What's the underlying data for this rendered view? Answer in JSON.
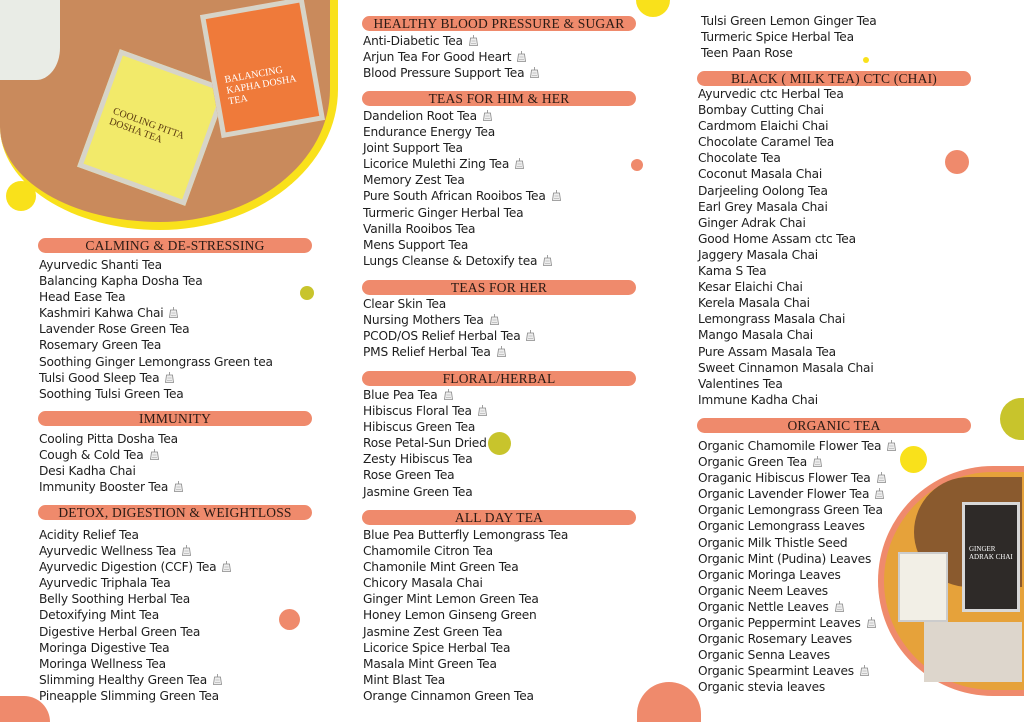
{
  "colors": {
    "header": "#ef8a6c",
    "yellow": "#f9e11b",
    "olive": "#c8c42c",
    "orange": "#ef8a6c"
  },
  "icons": {
    "teabag": "teabag-icon"
  },
  "photos": {
    "top_left": {
      "tin1_label": "COOLING PITTA DOSHA TEA",
      "tin2_label": "BALANCING KAPHA DOSHA TEA"
    },
    "bottom_right": {
      "jar_label": "GINGER ADRAK CHAI"
    }
  },
  "sections": [
    {
      "id": "calming",
      "title": "CALMING & DE-STRESSING",
      "items": [
        {
          "name": "Ayurvedic Shanti Tea"
        },
        {
          "name": "Balancing Kapha Dosha Tea"
        },
        {
          "name": "Head Ease Tea"
        },
        {
          "name": "Kashmiri Kahwa Chai",
          "teabag": true
        },
        {
          "name": "Lavender Rose Green Tea"
        },
        {
          "name": "Rosemary Green Tea"
        },
        {
          "name": "Soothing Ginger Lemongrass Green tea"
        },
        {
          "name": "Tulsi Good Sleep Tea",
          "teabag": true
        },
        {
          "name": "Soothing Tulsi Green Tea"
        }
      ]
    },
    {
      "id": "immunity",
      "title": "IMMUNITY",
      "items": [
        {
          "name": "Cooling Pitta Dosha Tea"
        },
        {
          "name": "Cough & Cold Tea",
          "teabag": true
        },
        {
          "name": "Desi Kadha Chai"
        },
        {
          "name": "Immunity Booster Tea",
          "teabag": true
        }
      ]
    },
    {
      "id": "detox",
      "title": "DETOX, DIGESTION & WEIGHTLOSS",
      "items": [
        {
          "name": "Acidity Relief Tea"
        },
        {
          "name": "Ayurvedic Wellness Tea",
          "teabag": true
        },
        {
          "name": "Ayurvedic Digestion (CCF) Tea",
          "teabag": true
        },
        {
          "name": "Ayurvedic Triphala Tea"
        },
        {
          "name": "Belly Soothing Herbal Tea"
        },
        {
          "name": "Detoxifying Mint Tea"
        },
        {
          "name": "Digestive Herbal Green Tea"
        },
        {
          "name": "Moringa Digestive Tea"
        },
        {
          "name": "Moringa Wellness Tea"
        },
        {
          "name": "Slimming Healthy Green Tea",
          "teabag": true
        },
        {
          "name": "Pineapple Slimming Green Tea"
        }
      ]
    },
    {
      "id": "blood-pressure",
      "title": "HEALTHY BLOOD PRESSURE & SUGAR",
      "items": [
        {
          "name": "Anti-Diabetic Tea",
          "teabag": true
        },
        {
          "name": "Arjun Tea For Good Heart",
          "teabag": true
        },
        {
          "name": "Blood Pressure Support Tea",
          "teabag": true
        }
      ]
    },
    {
      "id": "him-her",
      "title": "TEAS FOR HIM & HER",
      "items": [
        {
          "name": "Dandelion Root Tea",
          "teabag": true
        },
        {
          "name": "Endurance Energy Tea"
        },
        {
          "name": "Joint Support Tea"
        },
        {
          "name": "Licorice Mulethi Zing Tea",
          "teabag": true
        },
        {
          "name": "Memory Zest Tea"
        },
        {
          "name": "Pure South African Rooibos Tea",
          "teabag": true
        },
        {
          "name": "Turmeric Ginger Herbal Tea"
        },
        {
          "name": "Vanilla Rooibos Tea"
        },
        {
          "name": "Mens Support Tea"
        },
        {
          "name": "Lungs Cleanse & Detoxify tea",
          "teabag": true
        }
      ]
    },
    {
      "id": "her",
      "title": "TEAS FOR HER",
      "items": [
        {
          "name": "Clear Skin Tea"
        },
        {
          "name": "Nursing Mothers Tea",
          "teabag": true
        },
        {
          "name": "PCOD/OS Relief Herbal Tea",
          "teabag": true
        },
        {
          "name": "PMS Relief Herbal Tea",
          "teabag": true
        }
      ]
    },
    {
      "id": "floral",
      "title": "FLORAL/HERBAL",
      "items": [
        {
          "name": "Blue Pea Tea",
          "teabag": true
        },
        {
          "name": "Hibiscus Floral Tea",
          "teabag": true
        },
        {
          "name": "Hibiscus Green Tea"
        },
        {
          "name": "Rose Petal-Sun Dried"
        },
        {
          "name": "Zesty Hibiscus Tea"
        },
        {
          "name": "Rose Green Tea"
        },
        {
          "name": "Jasmine Green Tea"
        }
      ]
    },
    {
      "id": "all-day",
      "title": "ALL DAY TEA",
      "items": [
        {
          "name": "Blue Pea Butterfly Lemongrass Tea"
        },
        {
          "name": "Chamomile Citron Tea"
        },
        {
          "name": "Chamonile Mint Green Tea"
        },
        {
          "name": "Chicory Masala Chai"
        },
        {
          "name": "Ginger Mint Lemon Green Tea"
        },
        {
          "name": "Honey Lemon Ginseng Green"
        },
        {
          "name": "Jasmine Zest Green Tea"
        },
        {
          "name": "Licorice Spice Herbal Tea"
        },
        {
          "name": "Masala Mint Green Tea"
        },
        {
          "name": "Mint Blast Tea"
        },
        {
          "name": "Orange Cinnamon Green Tea"
        }
      ]
    },
    {
      "id": "all-day-cont",
      "title": "",
      "items": [
        {
          "name": "Tulsi Green Lemon Ginger Tea"
        },
        {
          "name": "Turmeric Spice Herbal Tea"
        },
        {
          "name": "Teen Paan Rose"
        }
      ]
    },
    {
      "id": "black",
      "title": "BLACK ( MILK TEA) CTC (CHAI)",
      "items": [
        {
          "name": "Ayurvedic ctc Herbal Tea"
        },
        {
          "name": "Bombay Cutting Chai"
        },
        {
          "name": "Cardmom Elaichi Chai"
        },
        {
          "name": "Chocolate Caramel Tea"
        },
        {
          "name": "Chocolate Tea"
        },
        {
          "name": "Coconut Masala Chai"
        },
        {
          "name": "Darjeeling Oolong Tea"
        },
        {
          "name": "Earl Grey Masala Chai"
        },
        {
          "name": "Ginger Adrak Chai"
        },
        {
          "name": "Good Home Assam ctc Tea"
        },
        {
          "name": "Jaggery Masala Chai"
        },
        {
          "name": "Kama S Tea"
        },
        {
          "name": "Kesar Elaichi Chai"
        },
        {
          "name": "Kerela Masala Chai"
        },
        {
          "name": "Lemongrass Masala Chai"
        },
        {
          "name": "Mango Masala Chai"
        },
        {
          "name": "Pure Assam Masala Tea"
        },
        {
          "name": "Sweet Cinnamon Masala Chai"
        },
        {
          "name": "Valentines Tea"
        },
        {
          "name": "Immune Kadha Chai"
        }
      ]
    },
    {
      "id": "organic",
      "title": "ORGANIC TEA",
      "items": [
        {
          "name": "Organic Chamomile Flower Tea",
          "teabag": true
        },
        {
          "name": "Organic Green Tea",
          "teabag": true
        },
        {
          "name": "Oraganic Hibiscus Flower Tea",
          "teabag": true
        },
        {
          "name": "Organic Lavender Flower Tea",
          "teabag": true
        },
        {
          "name": "Organic Lemongrass  Green Tea"
        },
        {
          "name": "Organic Lemongrass Leaves"
        },
        {
          "name": "Organic Milk Thistle Seed"
        },
        {
          "name": "Organic Mint (Pudina) Leaves"
        },
        {
          "name": "Organic Moringa Leaves"
        },
        {
          "name": "Organic Neem Leaves"
        },
        {
          "name": "Organic Nettle Leaves",
          "teabag": true
        },
        {
          "name": "Organic Peppermint Leaves",
          "teabag": true
        },
        {
          "name": "Organic Rosemary Leaves"
        },
        {
          "name": "Organic Senna Leaves"
        },
        {
          "name": "Organic Spearmint Leaves",
          "teabag": true
        },
        {
          "name": "Organic stevia leaves"
        }
      ]
    }
  ]
}
